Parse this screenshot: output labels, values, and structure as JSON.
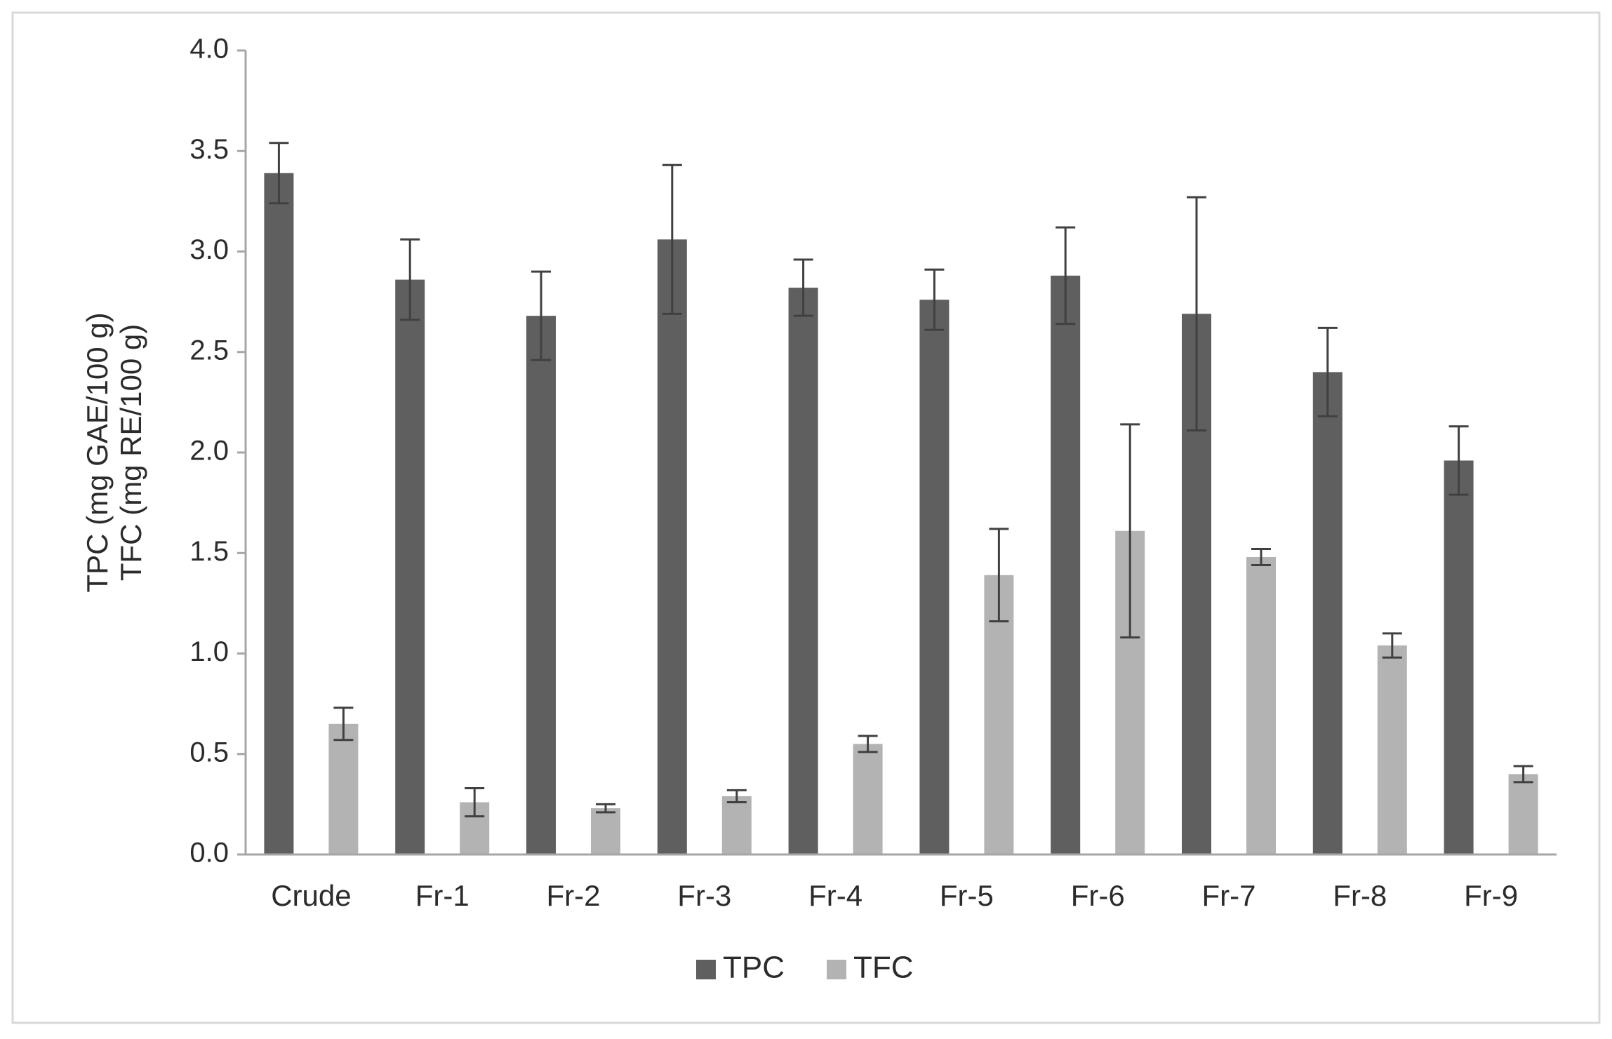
{
  "chart_data": {
    "type": "bar",
    "title": "",
    "xlabel": "",
    "ylabel": [
      "TPC (mg GAE/100 g)",
      "TFC (mg RE/100 g)"
    ],
    "ylim": [
      0,
      4.0
    ],
    "yticks": [
      "0.0",
      "0.5",
      "1.0",
      "1.5",
      "2.0",
      "2.5",
      "3.0",
      "3.5",
      "4.0"
    ],
    "categories": [
      "Crude",
      "Fr-1",
      "Fr-2",
      "Fr-3",
      "Fr-4",
      "Fr-5",
      "Fr-6",
      "Fr-7",
      "Fr-8",
      "Fr-9"
    ],
    "grid": false,
    "legend_position": "bottom",
    "series": [
      {
        "name": "TPC",
        "color": "#5f5f5f",
        "values": [
          3.39,
          2.86,
          2.68,
          3.06,
          2.82,
          2.76,
          2.88,
          2.69,
          2.4,
          1.96
        ],
        "errors": [
          0.15,
          0.2,
          0.22,
          0.37,
          0.14,
          0.15,
          0.24,
          0.58,
          0.22,
          0.17
        ]
      },
      {
        "name": "TFC",
        "color": "#b3b3b3",
        "values": [
          0.65,
          0.26,
          0.23,
          0.29,
          0.55,
          1.39,
          1.61,
          1.48,
          1.04,
          0.4
        ],
        "errors": [
          0.08,
          0.07,
          0.02,
          0.03,
          0.04,
          0.23,
          0.53,
          0.04,
          0.06,
          0.04
        ]
      }
    ],
    "colors": {
      "axis": "#a6a6a6",
      "error_bar": "#404040",
      "frame": "#d9d9d9"
    }
  }
}
